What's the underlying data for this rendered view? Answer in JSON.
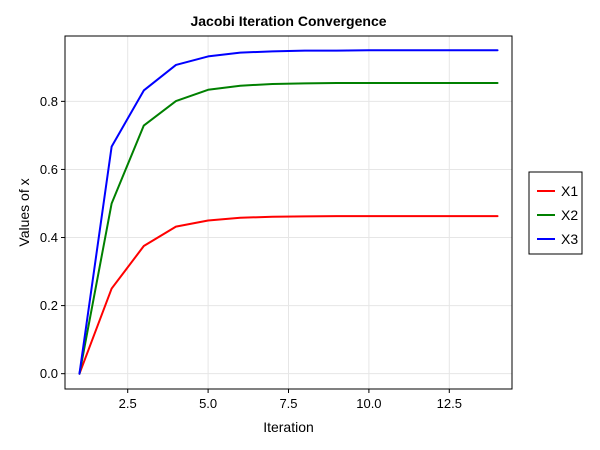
{
  "chart_data": {
    "type": "line",
    "title": "Jacobi Iteration Convergence",
    "xlabel": "Iteration",
    "ylabel": "Values of x",
    "xlim": [
      0.55,
      14.45
    ],
    "ylim": [
      -0.045,
      0.992
    ],
    "x_ticks": [
      2.5,
      5.0,
      7.5,
      10.0,
      12.5
    ],
    "x_tick_labels": [
      "2.5",
      "5.0",
      "7.5",
      "10.0",
      "12.5"
    ],
    "y_ticks": [
      0.0,
      0.2,
      0.4,
      0.6,
      0.8
    ],
    "y_tick_labels": [
      "0.0",
      "0.2",
      "0.4",
      "0.6",
      "0.8"
    ],
    "grid": true,
    "legend_position": "right-outside",
    "x": [
      1,
      2,
      3,
      4,
      5,
      6,
      7,
      8,
      9,
      10,
      11,
      12,
      13,
      14
    ],
    "series": [
      {
        "name": "X1",
        "color": "#ff0000",
        "values": [
          0.0,
          0.25,
          0.375,
          0.432,
          0.45,
          0.458,
          0.461,
          0.462,
          0.463,
          0.463,
          0.463,
          0.463,
          0.463,
          0.463
        ]
      },
      {
        "name": "X2",
        "color": "#008000",
        "values": [
          0.0,
          0.5,
          0.729,
          0.801,
          0.834,
          0.846,
          0.851,
          0.853,
          0.854,
          0.854,
          0.854,
          0.854,
          0.854,
          0.854
        ]
      },
      {
        "name": "X3",
        "color": "#0000ff",
        "values": [
          0.0,
          0.667,
          0.832,
          0.907,
          0.932,
          0.943,
          0.947,
          0.949,
          0.949,
          0.95,
          0.95,
          0.95,
          0.95,
          0.95
        ]
      }
    ]
  }
}
